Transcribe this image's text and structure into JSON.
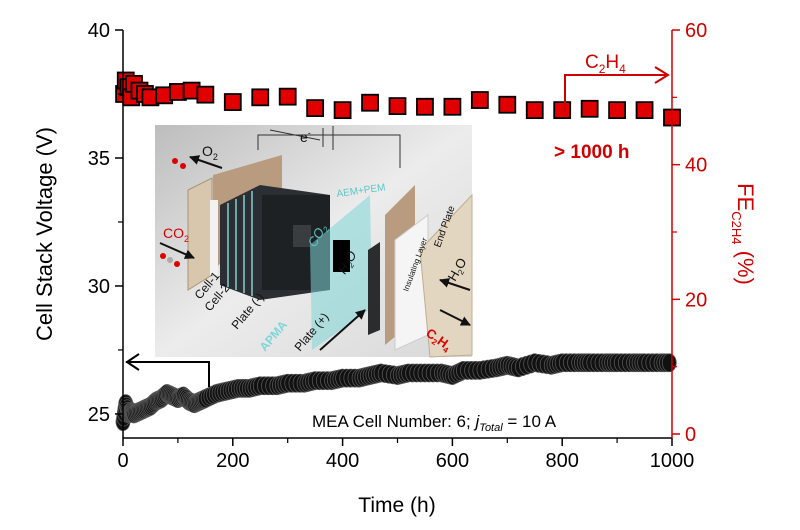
{
  "colors": {
    "fe": "#e00000",
    "voltage": "#000000",
    "axis_right": "#d00000",
    "membrane": "#7fd6d6"
  },
  "chart_data": {
    "type": "scatter",
    "xlabel": "Time (h)",
    "ylabel": "Cell Stack Voltage (V)",
    "ylabel_right_main": "FE",
    "ylabel_right_sub": "C2H4",
    "ylabel_right_unit": " (%)",
    "xlim": [
      0,
      1000
    ],
    "ylim": [
      24.06,
      40
    ],
    "ylim_right": [
      0,
      60
    ],
    "xticks": [
      0,
      200,
      400,
      600,
      800,
      1000
    ],
    "yticks": [
      25,
      30,
      35,
      40
    ],
    "yticks_right": [
      0,
      20,
      40,
      60
    ],
    "grid": false,
    "series": [
      {
        "axis": "left",
        "marker": "circle",
        "color": "#000000",
        "x": [
          0,
          5,
          10,
          15,
          20,
          30,
          40,
          50,
          60,
          70,
          80,
          90,
          100,
          110,
          120,
          130,
          140,
          150,
          170,
          190,
          210,
          230,
          250,
          280,
          300,
          330,
          350,
          380,
          400,
          430,
          450,
          470,
          500,
          520,
          550,
          580,
          600,
          620,
          650,
          680,
          700,
          720,
          750,
          780,
          800,
          830,
          850,
          880,
          900,
          930,
          950,
          980,
          1000
        ],
        "y": [
          24.7,
          25.4,
          25.0,
          25.1,
          25.0,
          25.1,
          25.2,
          25.3,
          25.5,
          25.6,
          25.8,
          25.7,
          25.6,
          25.7,
          25.5,
          25.4,
          25.5,
          25.6,
          25.8,
          25.9,
          26.0,
          26.0,
          26.1,
          26.1,
          26.2,
          26.2,
          26.3,
          26.3,
          26.4,
          26.4,
          26.5,
          26.6,
          26.5,
          26.6,
          26.6,
          26.6,
          26.5,
          26.7,
          26.7,
          26.8,
          26.9,
          26.8,
          27.0,
          26.9,
          27.0,
          27.0,
          27.0,
          27.0,
          27.0,
          27.0,
          27.0,
          27.0,
          27.0
        ]
      },
      {
        "axis": "right",
        "marker": "square",
        "color": "#e00000",
        "x": [
          2,
          5,
          10,
          15,
          20,
          30,
          40,
          50,
          75,
          100,
          125,
          150,
          200,
          250,
          300,
          350,
          400,
          450,
          500,
          550,
          600,
          650,
          700,
          750,
          800,
          850,
          900,
          950,
          1000
        ],
        "y": [
          50.5,
          52.5,
          51.5,
          50.0,
          52.0,
          51.0,
          50.5,
          50.0,
          50.3,
          50.8,
          51.0,
          50.4,
          49.3,
          50.0,
          50.1,
          48.4,
          48.1,
          49.2,
          48.7,
          48.6,
          48.6,
          49.6,
          48.9,
          48.1,
          48.1,
          48.3,
          48.1,
          48.1,
          47.0
        ]
      }
    ],
    "annotations": {
      "c2h4_label_main": "C",
      "c2h4_label_sub1": "2",
      "c2h4_label_mid": "H",
      "c2h4_label_sub2": "4",
      "duration": "> 1000 h",
      "condition_prefix": "MEA Cell Number: 6; ",
      "condition_j": "j",
      "condition_j_sub": "Total",
      "condition_suffix": " = 10 A"
    }
  },
  "inset": {
    "o2": "O",
    "o2_sub": "2",
    "electron": "e",
    "electron_sup": "-",
    "membrane": "AEM+PEM",
    "co2_left": "CO",
    "co2_left_sub": "2",
    "co2_center": "CO",
    "co2_center_sub": "2",
    "h2o_center": "H",
    "h2o_center_sub": "2",
    "h2o_center_end": "O",
    "cell1": "Cell-1",
    "cell2": "Cell-2",
    "plate_neg": "Plate (-)",
    "plate_pos": "Plate (+)",
    "apma": "APMA",
    "insulating": "Insulating Layer",
    "end_plate": "End Plate",
    "h2o_right": "H",
    "h2o_right_sub": "2",
    "h2o_right_end": "O",
    "c2h4": "C",
    "c2h4_sub1": "2",
    "c2h4_mid": "H",
    "c2h4_sub2": "4"
  }
}
